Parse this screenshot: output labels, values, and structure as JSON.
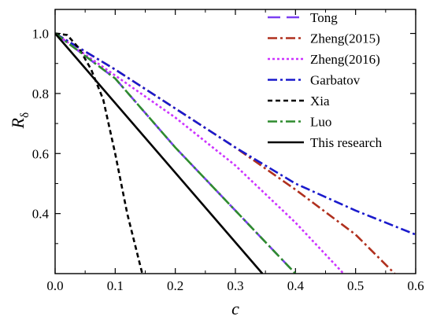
{
  "chart_data": {
    "type": "line",
    "xlabel": "c",
    "ylabel_main": "R",
    "ylabel_sub": "δ",
    "xlim": [
      0.0,
      0.6
    ],
    "ylim": [
      0.2,
      1.08
    ],
    "x_ticks": [
      0.0,
      0.1,
      0.2,
      0.3,
      0.4,
      0.5,
      0.6
    ],
    "x_tick_labels": [
      "0.0",
      "0.1",
      "0.2",
      "0.3",
      "0.4",
      "0.5",
      "0.6"
    ],
    "y_ticks": [
      0.4,
      0.6,
      0.8,
      1.0
    ],
    "y_tick_labels": [
      "0.4",
      "0.6",
      "0.8",
      "1.0"
    ],
    "grid": false,
    "legend_position": "top-right",
    "series": [
      {
        "name": "Tong",
        "color": "#7b3ff2",
        "dash": "long-dash",
        "x": [
          0.0,
          0.1,
          0.2,
          0.3,
          0.4
        ],
        "y": [
          1.0,
          0.85,
          0.62,
          0.41,
          0.2
        ]
      },
      {
        "name": "Zheng(2015)",
        "color": "#b0301e",
        "dash": "dash-dot",
        "x": [
          0.0,
          0.1,
          0.2,
          0.3,
          0.4,
          0.5,
          0.565
        ],
        "y": [
          1.0,
          0.88,
          0.75,
          0.62,
          0.48,
          0.33,
          0.2
        ]
      },
      {
        "name": "Zheng(2016)",
        "color": "#cc33ff",
        "dash": "dot",
        "x": [
          0.0,
          0.1,
          0.2,
          0.3,
          0.4,
          0.48
        ],
        "y": [
          1.0,
          0.86,
          0.72,
          0.56,
          0.37,
          0.2
        ]
      },
      {
        "name": "Garbatov",
        "color": "#1a1acc",
        "dash": "dash-dot",
        "x": [
          0.0,
          0.1,
          0.2,
          0.3,
          0.4,
          0.5,
          0.6
        ],
        "y": [
          1.0,
          0.88,
          0.75,
          0.62,
          0.5,
          0.41,
          0.33
        ]
      },
      {
        "name": "Xia",
        "color": "#000000",
        "dash": "short-dash",
        "x": [
          0.0,
          0.02,
          0.04,
          0.06,
          0.08,
          0.1,
          0.12,
          0.145
        ],
        "y": [
          1.0,
          0.995,
          0.95,
          0.88,
          0.78,
          0.6,
          0.4,
          0.2
        ]
      },
      {
        "name": "Luo",
        "color": "#2e8b2e",
        "dash": "dash-dot",
        "x": [
          0.0,
          0.1,
          0.2,
          0.3,
          0.4
        ],
        "y": [
          1.0,
          0.85,
          0.62,
          0.41,
          0.2
        ]
      },
      {
        "name": "This research",
        "color": "#000000",
        "dash": "solid",
        "x": [
          0.0,
          0.345
        ],
        "y": [
          1.0,
          0.2
        ]
      }
    ]
  }
}
